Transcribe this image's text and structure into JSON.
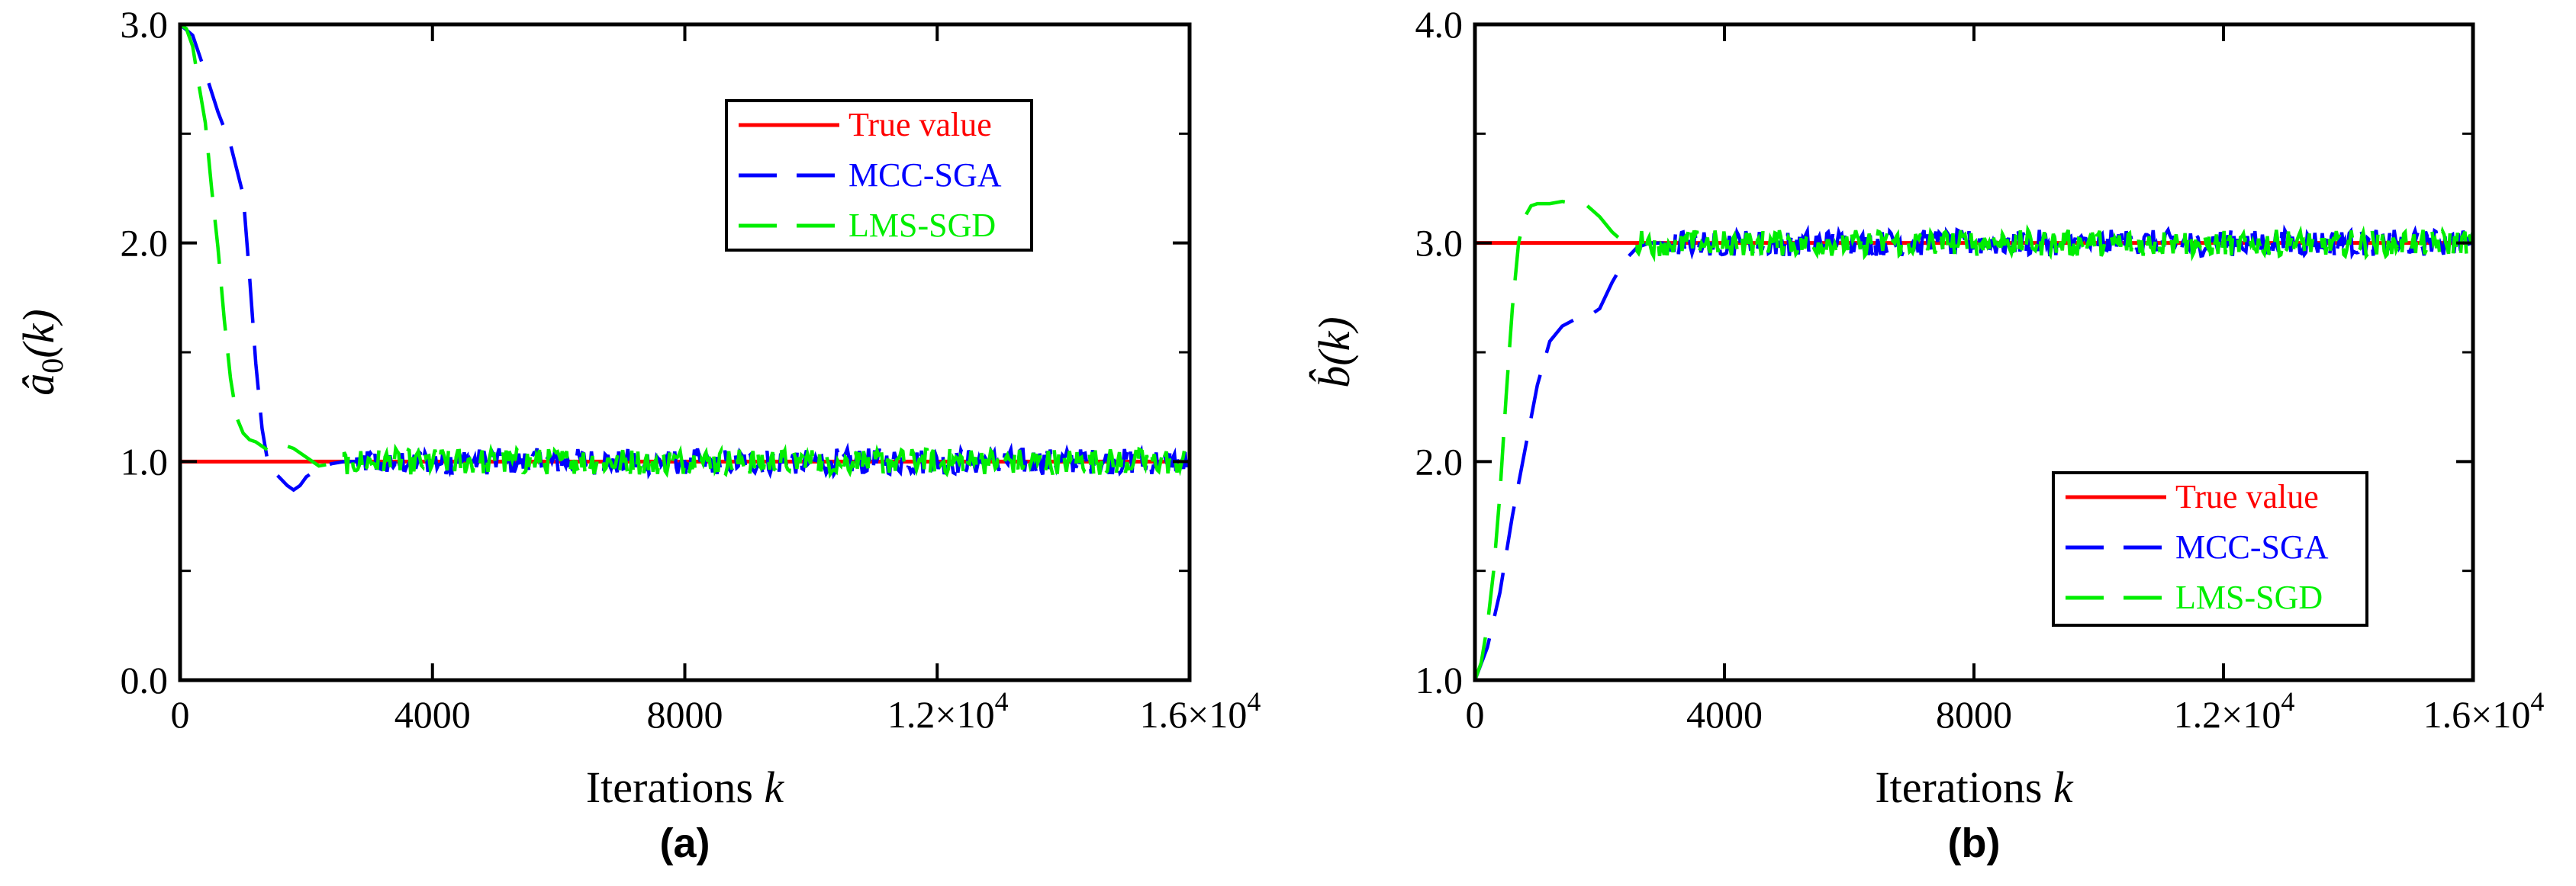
{
  "charts": [
    {
      "id": "a",
      "type": "line",
      "panel_label": "(a)",
      "ylabel_main": "â",
      "ylabel_sub": "0",
      "ylabel_tail": "(k)",
      "xlabel_text": "Iterations ",
      "xlabel_var": "k",
      "xlim": [
        0,
        16000
      ],
      "ylim": [
        0.0,
        3.0
      ],
      "x_ticks": [
        0,
        4000,
        8000,
        12000,
        16000
      ],
      "x_tick_labels": [
        "0",
        "4000",
        "8000",
        "1.2×10",
        "1.6×10"
      ],
      "x_tick_exponents": [
        "",
        "",
        "",
        "4",
        "4"
      ],
      "y_ticks": [
        0.0,
        1.0,
        2.0,
        3.0
      ],
      "y_tick_labels": [
        "0.0",
        "1.0",
        "2.0",
        "3.0"
      ],
      "legend_position": "top-right",
      "series": [
        {
          "name": "True value",
          "color": "#ff0000",
          "style": "solid",
          "kind": "constant",
          "value": 1.0
        },
        {
          "name": "MCC-SGA",
          "color": "#0000ff",
          "style": "dashed",
          "transient": [
            [
              0,
              3.0
            ],
            [
              200,
              2.95
            ],
            [
              400,
              2.78
            ],
            [
              600,
              2.6
            ],
            [
              800,
              2.45
            ],
            [
              1000,
              2.22
            ],
            [
              1100,
              1.85
            ],
            [
              1200,
              1.45
            ],
            [
              1300,
              1.15
            ],
            [
              1400,
              0.98
            ],
            [
              1500,
              0.95
            ],
            [
              1600,
              0.92
            ],
            [
              1700,
              0.89
            ],
            [
              1800,
              0.87
            ],
            [
              1900,
              0.89
            ],
            [
              2000,
              0.93
            ],
            [
              2200,
              0.97
            ],
            [
              2400,
              0.99
            ],
            [
              2600,
              1.0
            ],
            [
              2800,
              1.0
            ]
          ],
          "steady_mean": 1.0,
          "steady_amplitude": 0.06
        },
        {
          "name": "LMS-SGD",
          "color": "#00ee00",
          "style": "dashed",
          "transient": [
            [
              0,
              3.0
            ],
            [
              100,
              2.98
            ],
            [
              200,
              2.9
            ],
            [
              300,
              2.72
            ],
            [
              400,
              2.55
            ],
            [
              500,
              2.25
            ],
            [
              600,
              1.98
            ],
            [
              700,
              1.65
            ],
            [
              800,
              1.38
            ],
            [
              900,
              1.2
            ],
            [
              1000,
              1.13
            ],
            [
              1100,
              1.1
            ],
            [
              1200,
              1.09
            ],
            [
              1400,
              1.05
            ],
            [
              1600,
              1.08
            ],
            [
              1800,
              1.06
            ],
            [
              2000,
              1.02
            ],
            [
              2200,
              0.98
            ],
            [
              2400,
              0.99
            ],
            [
              2600,
              1.0
            ]
          ],
          "steady_mean": 1.0,
          "steady_amplitude": 0.06
        }
      ]
    },
    {
      "id": "b",
      "type": "line",
      "panel_label": "(b)",
      "ylabel_main": "b̂",
      "ylabel_sub": "",
      "ylabel_tail": "(k)",
      "xlabel_text": "Iterations ",
      "xlabel_var": "k",
      "xlim": [
        0,
        16000
      ],
      "ylim": [
        1.0,
        4.0
      ],
      "x_ticks": [
        0,
        4000,
        8000,
        12000,
        16000
      ],
      "x_tick_labels": [
        "0",
        "4000",
        "8000",
        "1.2×10",
        "1.6×10"
      ],
      "x_tick_exponents": [
        "",
        "",
        "",
        "4",
        "4"
      ],
      "y_ticks": [
        1.0,
        2.0,
        3.0,
        4.0
      ],
      "y_tick_labels": [
        "1.0",
        "2.0",
        "3.0",
        "4.0"
      ],
      "legend_position": "bottom-right",
      "series": [
        {
          "name": "True value",
          "color": "#ff0000",
          "style": "solid",
          "kind": "constant",
          "value": 3.0
        },
        {
          "name": "MCC-SGA",
          "color": "#0000ff",
          "style": "dashed",
          "transient": [
            [
              0,
              1.0
            ],
            [
              200,
              1.15
            ],
            [
              400,
              1.4
            ],
            [
              600,
              1.75
            ],
            [
              800,
              2.05
            ],
            [
              1000,
              2.35
            ],
            [
              1200,
              2.55
            ],
            [
              1400,
              2.62
            ],
            [
              1600,
              2.65
            ],
            [
              1800,
              2.66
            ],
            [
              2000,
              2.7
            ],
            [
              2200,
              2.82
            ],
            [
              2400,
              2.92
            ],
            [
              2600,
              2.98
            ],
            [
              2800,
              3.0
            ],
            [
              3000,
              3.0
            ]
          ],
          "steady_mean": 3.0,
          "steady_amplitude": 0.06
        },
        {
          "name": "LMS-SGD",
          "color": "#00ee00",
          "style": "dashed",
          "transient": [
            [
              0,
              1.0
            ],
            [
              100,
              1.08
            ],
            [
              200,
              1.25
            ],
            [
              300,
              1.5
            ],
            [
              400,
              1.85
            ],
            [
              500,
              2.3
            ],
            [
              600,
              2.7
            ],
            [
              700,
              3.0
            ],
            [
              800,
              3.12
            ],
            [
              900,
              3.17
            ],
            [
              1000,
              3.18
            ],
            [
              1200,
              3.18
            ],
            [
              1400,
              3.19
            ],
            [
              1600,
              3.18
            ],
            [
              1800,
              3.17
            ],
            [
              2000,
              3.12
            ],
            [
              2200,
              3.05
            ],
            [
              2400,
              3.0
            ],
            [
              2600,
              3.0
            ]
          ],
          "steady_mean": 3.0,
          "steady_amplitude": 0.06
        }
      ]
    }
  ],
  "chart_data": [
    {
      "type": "line",
      "title": "(a)",
      "xlabel": "Iterations k",
      "ylabel": "â0(k)",
      "xlim": [
        0,
        16000
      ],
      "ylim": [
        0.0,
        3.0
      ],
      "x_tick_labels": [
        "0",
        "4000",
        "8000",
        "1.2×10^4",
        "1.6×10^4"
      ],
      "y_tick_labels": [
        "0.0",
        "1.0",
        "2.0",
        "3.0"
      ],
      "legend": [
        "True value",
        "MCC-SGA",
        "LMS-SGD"
      ],
      "series": [
        {
          "name": "True value",
          "x": [
            0,
            16000
          ],
          "y": [
            1.0,
            1.0
          ]
        },
        {
          "name": "MCC-SGA",
          "x": [
            0,
            800,
            1200,
            1400,
            1800,
            2400,
            3000,
            16000
          ],
          "y": [
            3.0,
            2.45,
            1.45,
            0.98,
            0.87,
            0.99,
            1.0,
            1.0
          ]
        },
        {
          "name": "LMS-SGD",
          "x": [
            0,
            400,
            800,
            1000,
            1600,
            2200,
            2600,
            16000
          ],
          "y": [
            3.0,
            2.55,
            1.38,
            1.13,
            1.08,
            0.98,
            1.0,
            1.0
          ]
        }
      ]
    },
    {
      "type": "line",
      "title": "(b)",
      "xlabel": "Iterations k",
      "ylabel": "b̂(k)",
      "xlim": [
        0,
        16000
      ],
      "ylim": [
        1.0,
        4.0
      ],
      "x_tick_labels": [
        "0",
        "4000",
        "8000",
        "1.2×10^4",
        "1.6×10^4"
      ],
      "y_tick_labels": [
        "1.0",
        "2.0",
        "3.0",
        "4.0"
      ],
      "legend": [
        "True value",
        "MCC-SGA",
        "LMS-SGD"
      ],
      "series": [
        {
          "name": "True value",
          "x": [
            0,
            16000
          ],
          "y": [
            3.0,
            3.0
          ]
        },
        {
          "name": "MCC-SGA",
          "x": [
            0,
            600,
            1200,
            1800,
            2400,
            3000,
            16000
          ],
          "y": [
            1.0,
            1.75,
            2.55,
            2.66,
            2.92,
            3.0,
            3.0
          ]
        },
        {
          "name": "LMS-SGD",
          "x": [
            0,
            400,
            700,
            1000,
            1800,
            2400,
            16000
          ],
          "y": [
            1.0,
            1.85,
            3.0,
            3.18,
            3.17,
            3.0,
            3.0
          ]
        }
      ]
    }
  ]
}
